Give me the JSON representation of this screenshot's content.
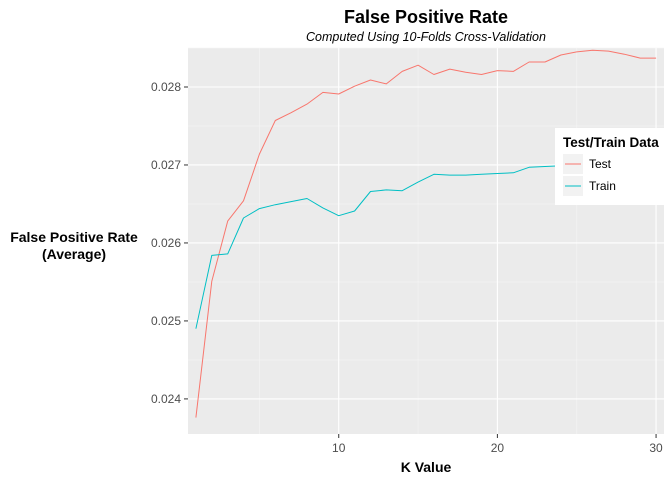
{
  "chart_data": {
    "type": "line",
    "title": "False Positive Rate",
    "subtitle": "Computed Using 10-Folds Cross-Validation",
    "xlabel": "K Value",
    "ylabel_line1": "False Positive Rate",
    "ylabel_line2": "(Average)",
    "xlim": [
      0.5,
      30.5
    ],
    "ylim": [
      0.02355,
      0.0285
    ],
    "x_ticks": [
      10,
      20,
      30
    ],
    "y_ticks": [
      0.024,
      0.025,
      0.026,
      0.027,
      0.028
    ],
    "x_tick_labels": [
      "10",
      "20",
      "30"
    ],
    "y_tick_labels": [
      "0.024",
      "0.025",
      "0.026",
      "0.027",
      "0.028"
    ],
    "grid": true,
    "legend": {
      "title": "Test/Train Data",
      "position": "right"
    },
    "x": [
      1,
      2,
      3,
      4,
      5,
      6,
      7,
      8,
      9,
      10,
      11,
      12,
      13,
      14,
      15,
      16,
      17,
      18,
      19,
      20,
      21,
      22,
      23,
      24,
      25,
      26,
      27,
      28,
      29,
      30
    ],
    "series": [
      {
        "name": "Test",
        "color": "#F8766D",
        "values": [
          0.02376,
          0.02551,
          0.02628,
          0.02654,
          0.02714,
          0.02757,
          0.02767,
          0.02778,
          0.02793,
          0.02791,
          0.02801,
          0.02809,
          0.02804,
          0.0282,
          0.02828,
          0.02816,
          0.02823,
          0.02819,
          0.02816,
          0.02821,
          0.0282,
          0.02832,
          0.02832,
          0.02841,
          0.02845,
          0.02847,
          0.02846,
          0.02842,
          0.02837,
          0.02837
        ]
      },
      {
        "name": "Train",
        "color": "#00BFC4",
        "values": [
          0.0249,
          0.02584,
          0.02586,
          0.02632,
          0.02644,
          0.02649,
          0.02653,
          0.02657,
          0.02645,
          0.02635,
          0.02641,
          0.02666,
          0.02668,
          0.02667,
          0.02678,
          0.02688,
          0.02687,
          0.02687,
          0.02688,
          0.02689,
          0.0269,
          0.02697,
          0.02698,
          0.02699,
          0.027,
          0.02701,
          0.02701,
          0.02702,
          0.02702,
          0.02702
        ]
      }
    ]
  }
}
